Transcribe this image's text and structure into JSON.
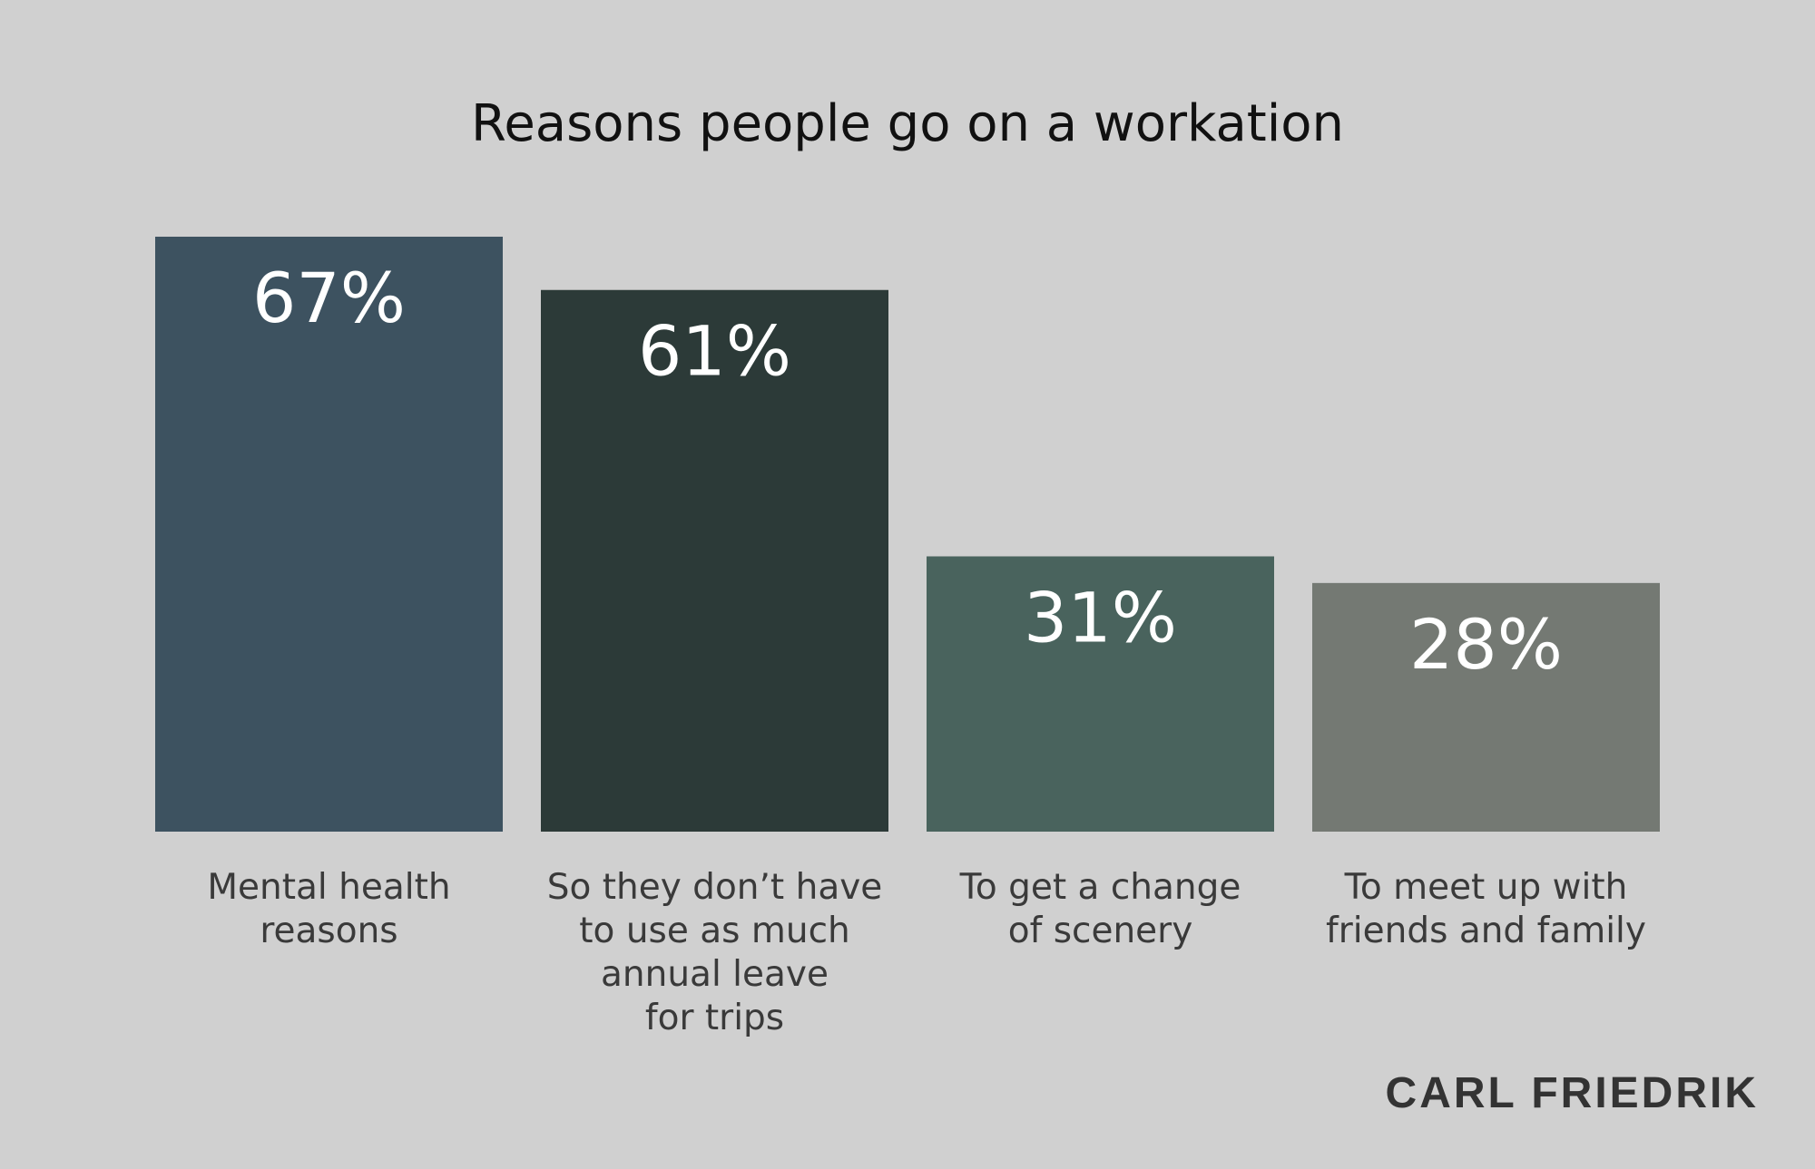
{
  "chart_data": {
    "type": "bar",
    "title": "Reasons people go on a workation",
    "categories": [
      "Mental health\nreasons",
      "So they don’t have\nto use as much\nannual leave\nfor trips",
      "To get a change\nof scenery",
      "To meet up with\nfriends and family"
    ],
    "values": [
      67,
      61,
      31,
      28
    ],
    "value_labels": [
      "67%",
      "61%",
      "31%",
      "28%"
    ],
    "colors": [
      "#3d5260",
      "#2c3a38",
      "#49635d",
      "#747973"
    ],
    "brand": "CARL FRIEDRIK"
  }
}
